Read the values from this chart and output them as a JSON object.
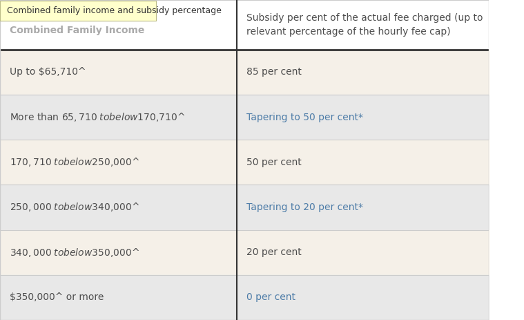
{
  "tooltip_text": "Combined family income and subsidy percentage",
  "col1_header": "Combined Family Income",
  "col2_header": "Subsidy per cent of the actual fee charged (up to\nrelevant percentage of the hourly fee cap)",
  "rows": [
    {
      "col1": "Up to $65,710^",
      "col2": "85 per cent",
      "col2_color": "#4d4d4d",
      "row_bg": "#f5f0e8"
    },
    {
      "col1": "More than $65,710^ to below $170,710^",
      "col2": "Tapering to 50 per cent*",
      "col2_color": "#4d7ca8",
      "row_bg": "#e8e8e8"
    },
    {
      "col1": "$170,710^ to below $250,000^",
      "col2": "50 per cent",
      "col2_color": "#4d4d4d",
      "row_bg": "#f5f0e8"
    },
    {
      "col1": "$250,000^ to below $340,000^",
      "col2": "Tapering to 20 per cent*",
      "col2_color": "#4d7ca8",
      "row_bg": "#e8e8e8"
    },
    {
      "col1": "$340,000^ to below $350,000^",
      "col2": "20 per cent",
      "col2_color": "#4d4d4d",
      "row_bg": "#f5f0e8"
    },
    {
      "col1": "$350,000^ or more",
      "col2": "0 per cent",
      "col2_color": "#4d7ca8",
      "row_bg": "#e8e8e8"
    }
  ],
  "header_bg": "#ffffff",
  "header_text_color": "#4d4d4d",
  "col1_header_color": "#aaaaaa",
  "border_color": "#cccccc",
  "thick_border_color": "#333333",
  "col_split": 0.485,
  "tooltip_bg": "#ffffcc",
  "tooltip_border": "#bbbb88",
  "tooltip_text_color": "#333333",
  "font_size": 10,
  "header_font_size": 10
}
